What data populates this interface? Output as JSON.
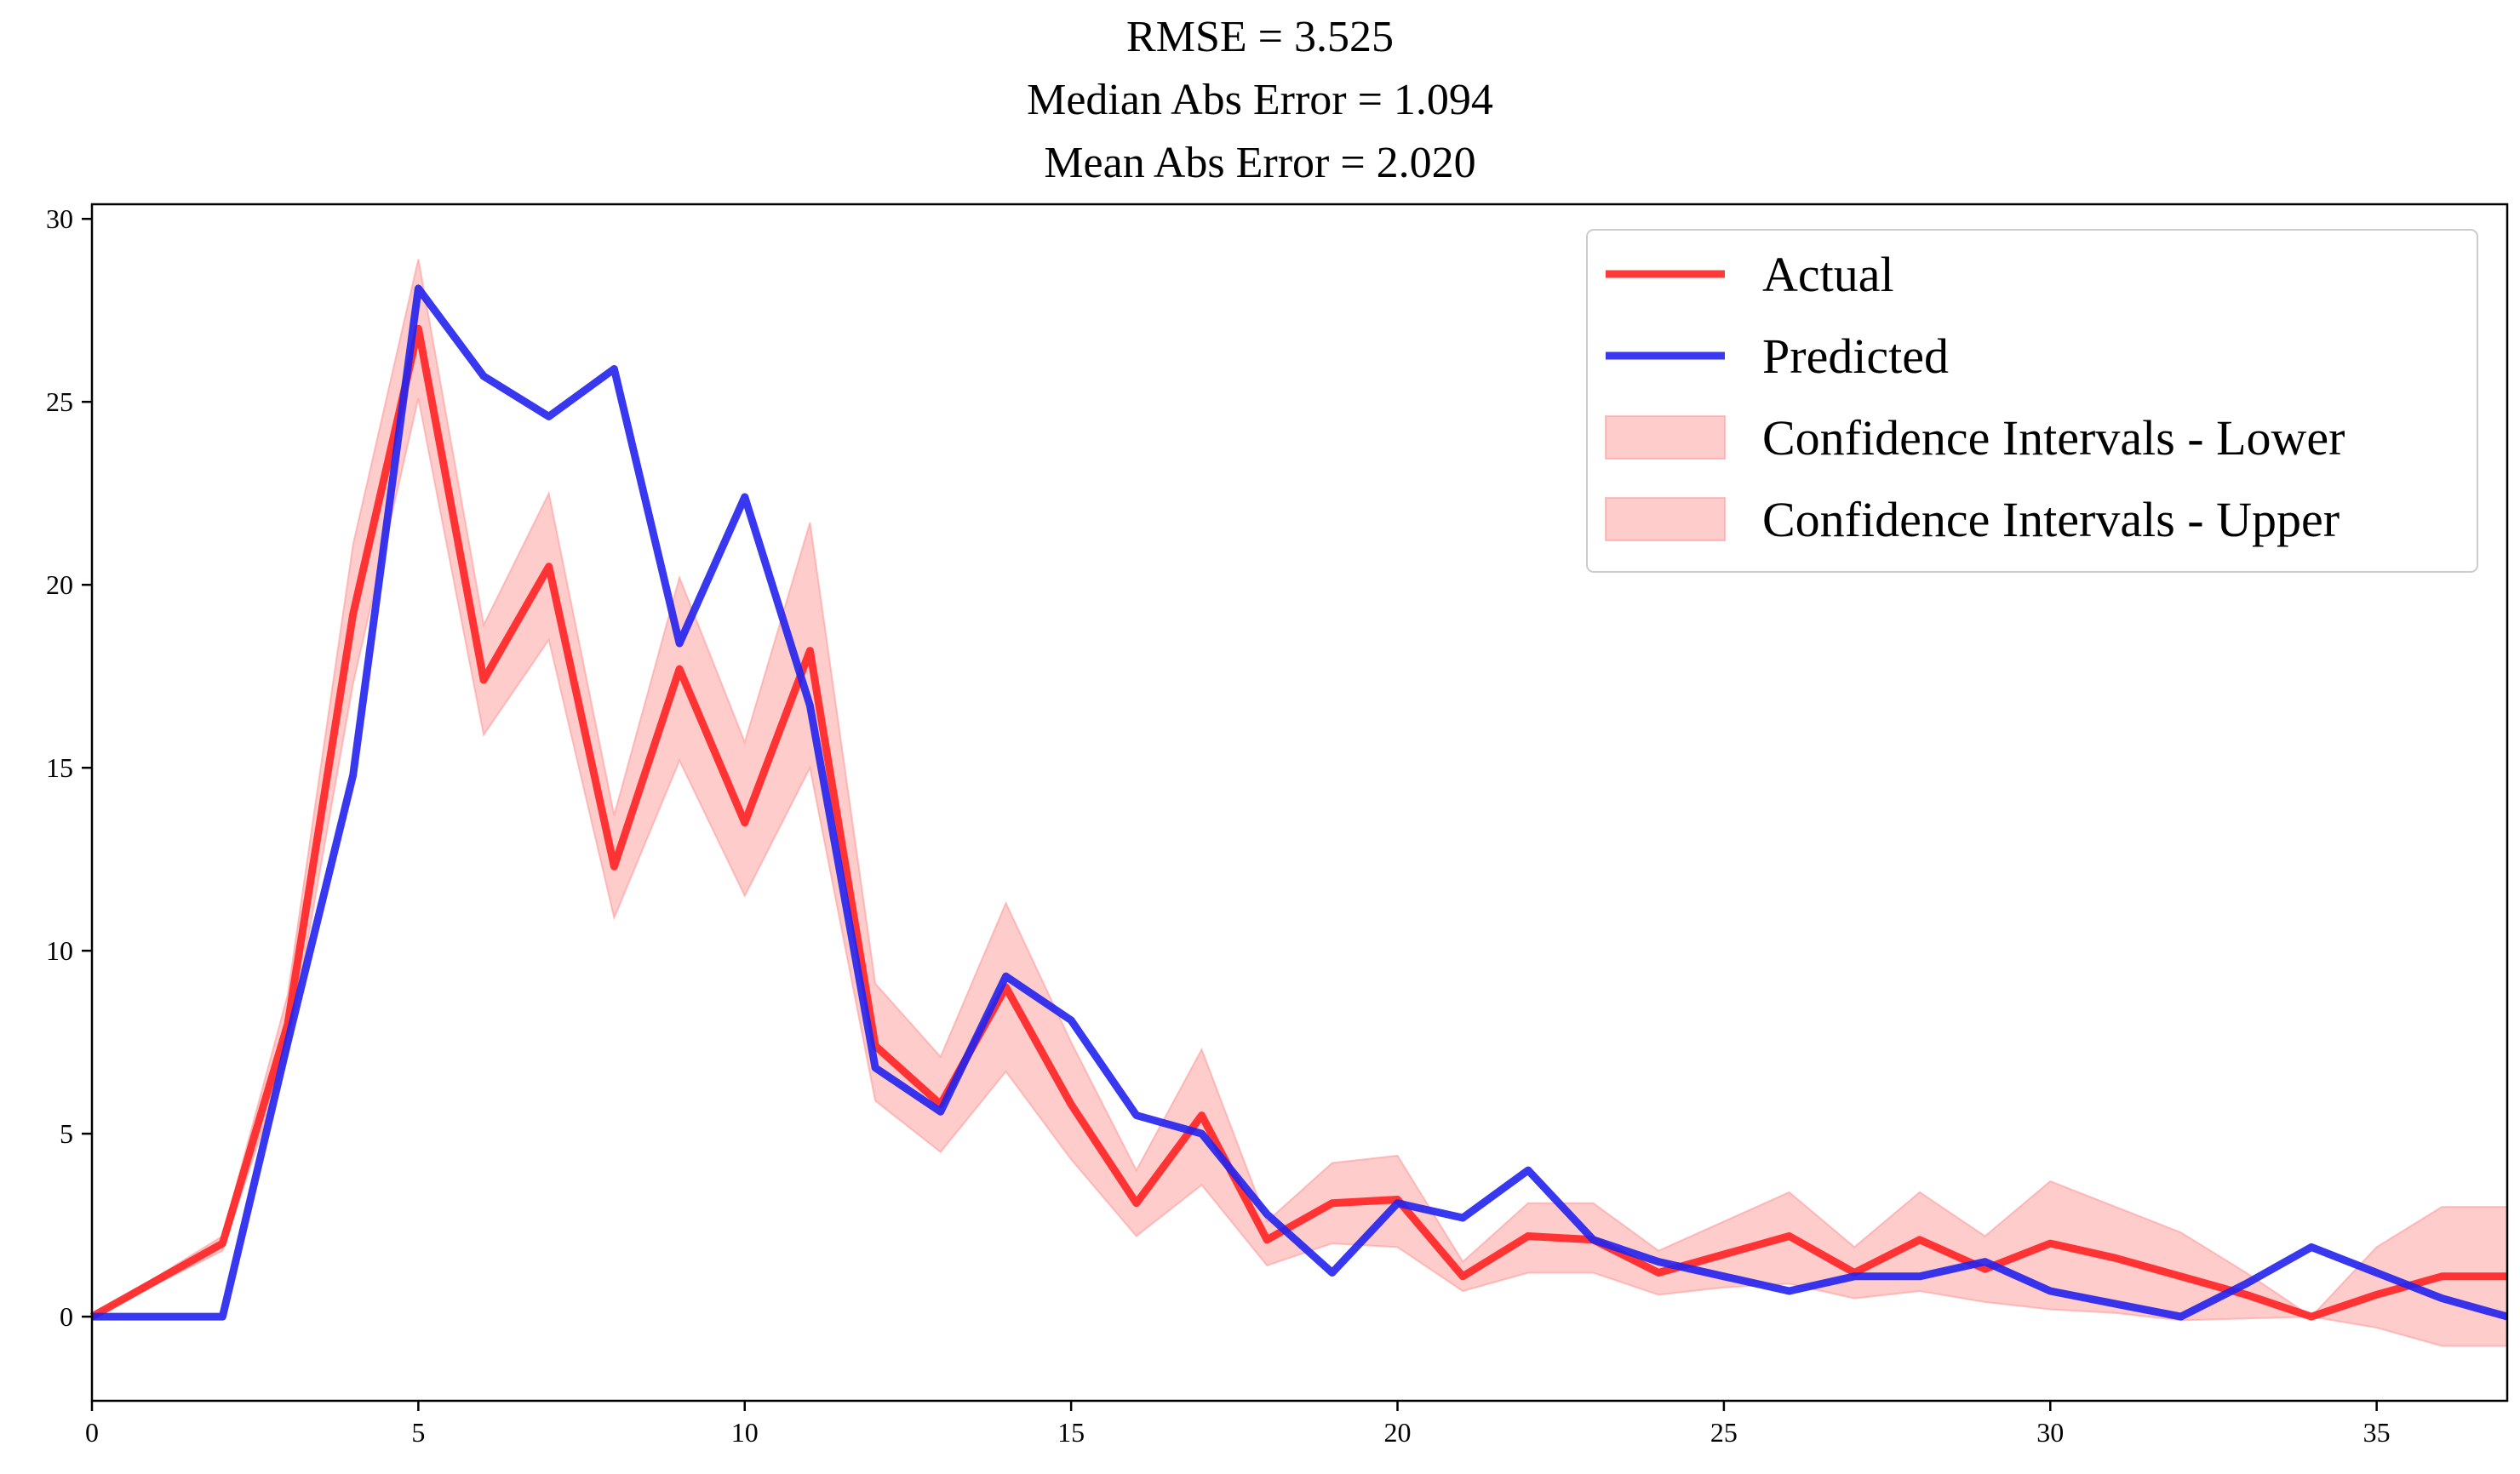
{
  "chart_data": {
    "type": "line",
    "title_lines": [
      "RMSE = 3.525",
      "Median Abs Error = 1.094",
      "Mean Abs Error = 2.020"
    ],
    "xlabel": "",
    "ylabel": "",
    "xlim": [
      0,
      37
    ],
    "ylim": [
      -2.3,
      30.4
    ],
    "x_ticks": [
      0,
      5,
      10,
      15,
      20,
      25,
      30,
      35
    ],
    "y_ticks": [
      0,
      5,
      10,
      15,
      20,
      25,
      30
    ],
    "grid": false,
    "legend_position": "top-right",
    "x": [
      0,
      1,
      2,
      3,
      4,
      5,
      6,
      7,
      8,
      9,
      10,
      11,
      12,
      13,
      14,
      15,
      16,
      17,
      18,
      19,
      20,
      21,
      22,
      23,
      24,
      25,
      26,
      27,
      28,
      29,
      30,
      31,
      32,
      33,
      34,
      35,
      36,
      37
    ],
    "series": [
      {
        "name": "Actual",
        "kind": "line",
        "color": "#ff2222",
        "values": [
          0,
          1,
          2,
          8,
          19.2,
          27,
          17.4,
          20.5,
          12.3,
          17.7,
          13.5,
          18.2,
          7.4,
          5.8,
          9,
          5.8,
          3.1,
          5.5,
          2.1,
          3.1,
          3.2,
          1.1,
          2.2,
          2.1,
          1.2,
          1.7,
          2.2,
          1.2,
          2.1,
          1.3,
          2,
          1.6,
          1.1,
          0.6,
          0,
          0.6,
          1.1,
          1.1
        ]
      },
      {
        "name": "Predicted",
        "kind": "line",
        "color": "#2222ee",
        "values": [
          0,
          0,
          0,
          7.5,
          14.8,
          28.1,
          25.7,
          24.6,
          25.9,
          18.4,
          22.4,
          16.7,
          6.8,
          5.6,
          9.3,
          8.1,
          5.5,
          5,
          2.8,
          1.2,
          3.1,
          2.7,
          4,
          2.1,
          1.5,
          1.1,
          0.7,
          1.1,
          1.1,
          1.5,
          0.7,
          0.35,
          0,
          0.9,
          1.9,
          1.2,
          0.5,
          0
        ]
      },
      {
        "name": "Confidence Intervals - Lower",
        "kind": "band",
        "color": "#ff9999",
        "lower": [
          0,
          0.9,
          1.8,
          7.2,
          17.3,
          25.1,
          15.9,
          18.5,
          10.9,
          15.2,
          11.5,
          15,
          5.9,
          4.5,
          6.7,
          4.3,
          2.2,
          3.6,
          1.4,
          2,
          1.9,
          0.7,
          1.2,
          1.2,
          0.6,
          0.8,
          0.9,
          0.5,
          0.7,
          0.4,
          0.2,
          0.1,
          -0.1,
          -0.05,
          0,
          -0.3,
          -0.8,
          -0.8
        ],
        "upper": [
          0,
          1.1,
          2.2,
          8.8,
          21.1,
          28.9,
          18.9,
          22.5,
          13.7,
          20.2,
          15.7,
          21.7,
          9.1,
          7.1,
          11.3,
          7.5,
          4,
          7.3,
          2.6,
          4.2,
          4.4,
          1.5,
          3.1,
          3.1,
          1.8,
          2.6,
          3.4,
          1.9,
          3.4,
          2.2,
          3.7,
          3,
          2.3,
          1.2,
          0,
          1.9,
          3,
          3
        ]
      },
      {
        "name": "Confidence Intervals - Upper",
        "kind": "band",
        "color": "#ff9999"
      }
    ]
  }
}
